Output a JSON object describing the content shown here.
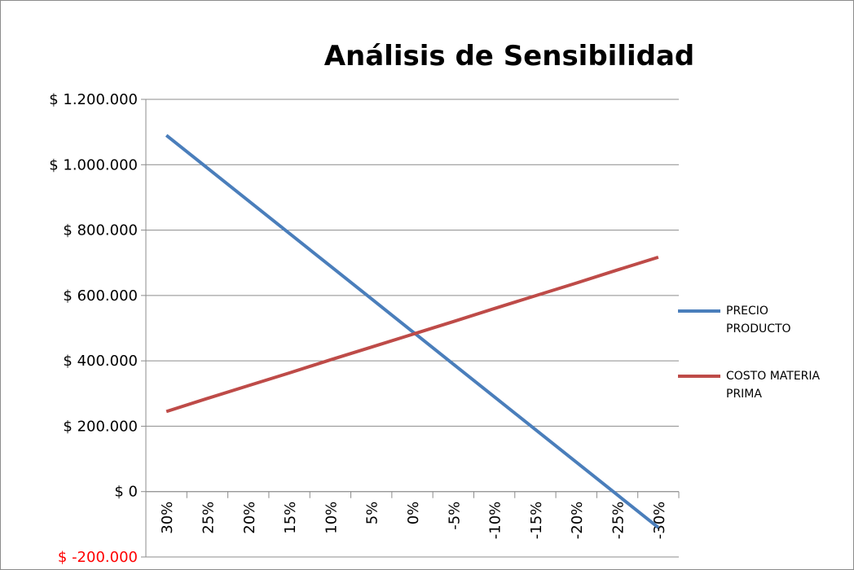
{
  "chart_data": {
    "type": "line",
    "title": "Análisis de Sensibilidad",
    "categories": [
      "30%",
      "25%",
      "20%",
      "15%",
      "10%",
      "5%",
      "0%",
      "-5%",
      "-10%",
      "-15%",
      "-20%",
      "-25%",
      "-30%"
    ],
    "series": [
      {
        "name": "PRECIO PRODUCTO",
        "color": "#4a7ebb",
        "values": [
          1090000,
          990000,
          890000,
          790000,
          690000,
          590000,
          490000,
          390000,
          290000,
          190000,
          90000,
          -10000,
          -110000
        ]
      },
      {
        "name": "COSTO MATERIA PRIMA",
        "color": "#be4b48",
        "values": [
          245000,
          285000,
          324000,
          363000,
          403000,
          442000,
          481000,
          520000,
          560000,
          599000,
          638000,
          678000,
          717000
        ]
      }
    ],
    "ylim": [
      -200000,
      1200000
    ],
    "yticks": [
      {
        "value": -200000,
        "label": "$ -200.000"
      },
      {
        "value": 0,
        "label": "$ 0"
      },
      {
        "value": 200000,
        "label": "$ 200.000"
      },
      {
        "value": 400000,
        "label": "$ 400.000"
      },
      {
        "value": 600000,
        "label": "$ 600.000"
      },
      {
        "value": 800000,
        "label": "$ 800.000"
      },
      {
        "value": 1000000,
        "label": "$ 1.000.000"
      },
      {
        "value": 1200000,
        "label": "$ 1.200.000"
      }
    ],
    "negative_tick_color": "#ff0000",
    "grid": true,
    "legend": "right"
  }
}
